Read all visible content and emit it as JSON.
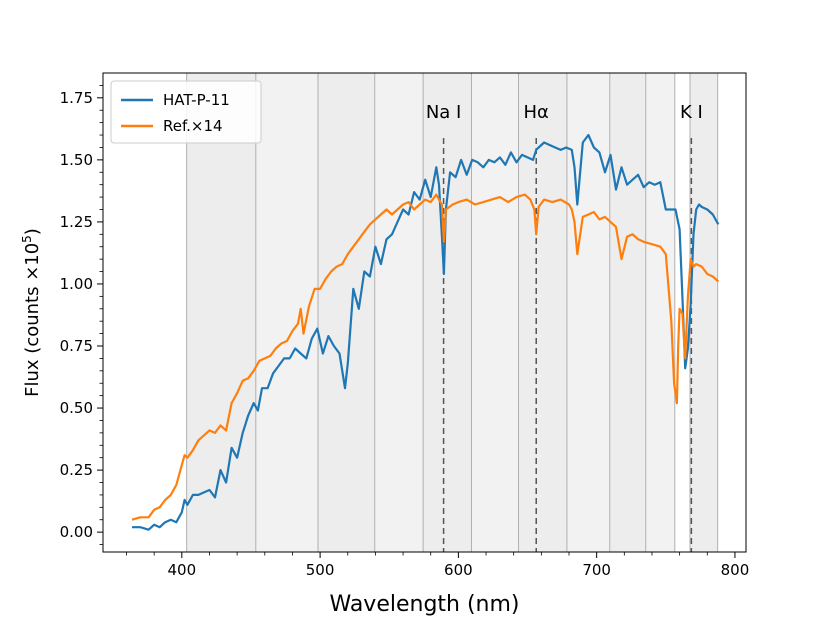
{
  "chart_data": {
    "type": "line",
    "title": "",
    "xlabel": "Wavelength (nm)",
    "ylabel": "Flux (counts ×10",
    "ylabel_sup": "5",
    "ylabel_close": ")",
    "xlim": [
      343,
      808
    ],
    "ylim": [
      -0.08,
      1.85
    ],
    "xticks": [
      400,
      500,
      600,
      700,
      800
    ],
    "xtick_labels": [
      "400",
      "500",
      "600",
      "700",
      "800"
    ],
    "yticks": [
      0.0,
      0.25,
      0.5,
      0.75,
      1.0,
      1.25,
      1.5,
      1.75
    ],
    "ytick_labels": [
      "0.00",
      "0.25",
      "0.50",
      "0.75",
      "1.00",
      "1.25",
      "1.50",
      "1.75"
    ],
    "bands": [
      {
        "x0": 403.5,
        "x1": 453.5,
        "shade": "#ededed"
      },
      {
        "x0": 453.5,
        "x1": 498.5,
        "shade": "#f2f2f2"
      },
      {
        "x0": 498.5,
        "x1": 539.5,
        "shade": "#ededed"
      },
      {
        "x0": 539.5,
        "x1": 574.5,
        "shade": "#f2f2f2"
      },
      {
        "x0": 574.5,
        "x1": 609.5,
        "shade": "#ededed"
      },
      {
        "x0": 609.5,
        "x1": 643.5,
        "shade": "#f2f2f2"
      },
      {
        "x0": 643.5,
        "x1": 678.5,
        "shade": "#ededed"
      },
      {
        "x0": 678.5,
        "x1": 709.5,
        "shade": "#f2f2f2"
      },
      {
        "x0": 709.5,
        "x1": 735.5,
        "shade": "#ededed"
      },
      {
        "x0": 735.5,
        "x1": 756.5,
        "shade": "#f2f2f2"
      },
      {
        "x0": 767.5,
        "x1": 787.5,
        "shade": "#ededed"
      }
    ],
    "lines_annotations": [
      {
        "label": "Na I",
        "x": 589.3
      },
      {
        "label": "Hα",
        "x": 656.3
      },
      {
        "label": "K I",
        "x": 768.5
      }
    ],
    "series": [
      {
        "name": "HAT-P-11",
        "color": "#1f77b4",
        "x": [
          364,
          370,
          376,
          380,
          384,
          388,
          392,
          396,
          400,
          402,
          404,
          408,
          412,
          416,
          420,
          424,
          428,
          432,
          436,
          440,
          444,
          448,
          452,
          455,
          458,
          462,
          466,
          470,
          474,
          478,
          482,
          486,
          490,
          494,
          498,
          502,
          506,
          510,
          514,
          518,
          520,
          524,
          528,
          532,
          536,
          540,
          544,
          548,
          552,
          556,
          560,
          564,
          568,
          572,
          576,
          580,
          584,
          586,
          588,
          589.5,
          591,
          594,
          598,
          602,
          606,
          610,
          614,
          618,
          622,
          626,
          630,
          634,
          638,
          642,
          646,
          650,
          654,
          656.3,
          658,
          662,
          666,
          670,
          674,
          678,
          682,
          684,
          686,
          690,
          694,
          698,
          702,
          706,
          710,
          714,
          718,
          722,
          726,
          730,
          734,
          738,
          742,
          746,
          750,
          754,
          757,
          760,
          762,
          764,
          766,
          768,
          770,
          772,
          774,
          776,
          780,
          784,
          788
        ],
        "values": [
          0.02,
          0.02,
          0.01,
          0.03,
          0.02,
          0.04,
          0.05,
          0.04,
          0.08,
          0.13,
          0.11,
          0.15,
          0.15,
          0.16,
          0.17,
          0.14,
          0.25,
          0.2,
          0.34,
          0.3,
          0.4,
          0.47,
          0.52,
          0.49,
          0.58,
          0.58,
          0.64,
          0.67,
          0.7,
          0.7,
          0.74,
          0.72,
          0.7,
          0.78,
          0.82,
          0.72,
          0.79,
          0.75,
          0.72,
          0.58,
          0.68,
          0.98,
          0.9,
          1.05,
          1.03,
          1.15,
          1.08,
          1.18,
          1.2,
          1.25,
          1.3,
          1.28,
          1.37,
          1.34,
          1.42,
          1.35,
          1.47,
          1.4,
          1.2,
          1.04,
          1.3,
          1.45,
          1.43,
          1.5,
          1.44,
          1.5,
          1.49,
          1.47,
          1.5,
          1.49,
          1.51,
          1.48,
          1.53,
          1.49,
          1.52,
          1.51,
          1.5,
          1.54,
          1.55,
          1.57,
          1.56,
          1.55,
          1.54,
          1.55,
          1.54,
          1.47,
          1.32,
          1.57,
          1.6,
          1.55,
          1.53,
          1.45,
          1.52,
          1.38,
          1.47,
          1.4,
          1.42,
          1.44,
          1.39,
          1.41,
          1.4,
          1.41,
          1.3,
          1.3,
          1.3,
          1.22,
          0.95,
          0.66,
          0.74,
          0.92,
          1.2,
          1.3,
          1.32,
          1.31,
          1.3,
          1.28,
          1.24
        ]
      },
      {
        "name": "Ref.×14",
        "color": "#ff7f0e",
        "x": [
          364,
          370,
          376,
          380,
          384,
          388,
          392,
          396,
          400,
          402,
          404,
          408,
          412,
          416,
          420,
          424,
          428,
          432,
          436,
          440,
          444,
          448,
          452,
          456,
          460,
          464,
          468,
          472,
          476,
          480,
          484,
          486,
          488,
          492,
          496,
          500,
          504,
          508,
          512,
          516,
          520,
          524,
          528,
          532,
          536,
          540,
          544,
          548,
          552,
          556,
          560,
          564,
          568,
          572,
          576,
          580,
          584,
          588,
          589.5,
          591,
          596,
          600,
          606,
          612,
          618,
          624,
          630,
          636,
          642,
          648,
          652,
          655,
          656.3,
          658,
          662,
          668,
          674,
          680,
          682,
          684,
          686,
          690,
          694,
          698,
          702,
          706,
          710,
          714,
          718,
          722,
          726,
          730,
          734,
          740,
          746,
          750,
          754,
          756,
          758,
          759,
          760,
          762,
          764,
          766,
          768,
          770,
          772,
          776,
          780,
          784,
          788
        ],
        "values": [
          0.05,
          0.06,
          0.06,
          0.09,
          0.1,
          0.13,
          0.15,
          0.19,
          0.27,
          0.31,
          0.3,
          0.33,
          0.37,
          0.39,
          0.41,
          0.4,
          0.43,
          0.41,
          0.52,
          0.56,
          0.61,
          0.62,
          0.65,
          0.69,
          0.7,
          0.71,
          0.74,
          0.76,
          0.77,
          0.81,
          0.84,
          0.9,
          0.8,
          0.91,
          0.98,
          0.98,
          1.02,
          1.05,
          1.07,
          1.08,
          1.12,
          1.15,
          1.18,
          1.21,
          1.24,
          1.26,
          1.28,
          1.3,
          1.28,
          1.3,
          1.32,
          1.33,
          1.3,
          1.32,
          1.34,
          1.33,
          1.36,
          1.32,
          1.17,
          1.3,
          1.32,
          1.33,
          1.34,
          1.32,
          1.33,
          1.34,
          1.35,
          1.33,
          1.35,
          1.36,
          1.34,
          1.3,
          1.2,
          1.31,
          1.34,
          1.33,
          1.34,
          1.32,
          1.3,
          1.25,
          1.12,
          1.27,
          1.28,
          1.29,
          1.26,
          1.27,
          1.25,
          1.23,
          1.1,
          1.19,
          1.2,
          1.18,
          1.17,
          1.16,
          1.15,
          1.12,
          0.85,
          0.6,
          0.52,
          0.75,
          0.9,
          0.88,
          0.7,
          0.95,
          1.1,
          1.07,
          1.08,
          1.07,
          1.04,
          1.03,
          1.01
        ]
      }
    ],
    "legend": {
      "position": "top-left",
      "entries": [
        "HAT-P-11",
        "Ref.×14"
      ]
    }
  }
}
